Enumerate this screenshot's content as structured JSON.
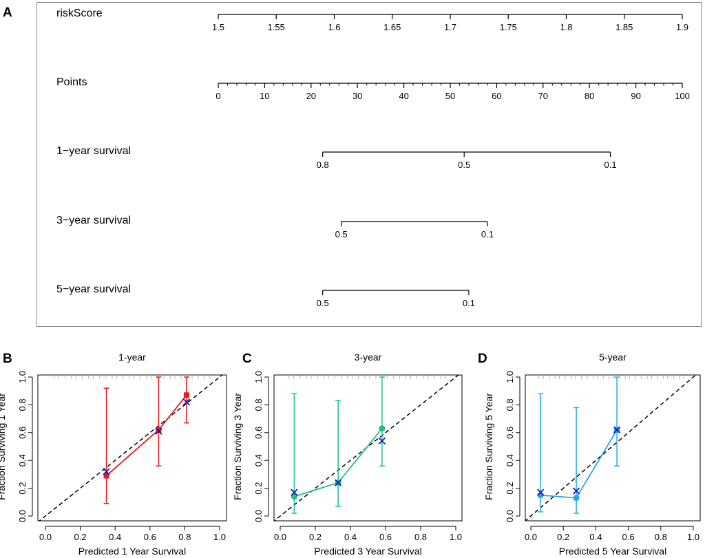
{
  "chart_data": [
    {
      "type": "nomogram",
      "panel_label": "A",
      "rows": [
        {
          "key": "riskScore",
          "label": "riskScore",
          "axis_min": 1.5,
          "axis_max": 1.9,
          "ticks": [
            "1.5",
            "1.55",
            "1.6",
            "1.65",
            "1.7",
            "1.75",
            "1.8",
            "1.85",
            "1.9"
          ],
          "tick_points": [
            0,
            12.5,
            25,
            37.5,
            50,
            62.5,
            75,
            87.5,
            100
          ],
          "minor_ticks": false
        },
        {
          "key": "points",
          "label": "Points",
          "axis_min": 0,
          "axis_max": 100,
          "ticks": [
            "0",
            "10",
            "20",
            "30",
            "40",
            "50",
            "60",
            "70",
            "80",
            "90",
            "100"
          ],
          "tick_points": [
            0,
            10,
            20,
            30,
            40,
            50,
            60,
            70,
            80,
            90,
            100
          ],
          "minor_ticks": true
        },
        {
          "key": "surv1",
          "label": "1−year survival",
          "ticks": [
            "0.8",
            "0.5",
            "0.1"
          ],
          "tick_points": [
            22.5,
            53,
            84.5
          ],
          "minor_ticks": false
        },
        {
          "key": "surv3",
          "label": "3−year survival",
          "ticks": [
            "0.5",
            "0.1"
          ],
          "tick_points": [
            26.5,
            58
          ],
          "minor_ticks": false
        },
        {
          "key": "surv5",
          "label": "5−year survival",
          "ticks": [
            "0.5",
            "0.1"
          ],
          "tick_points": [
            22.5,
            54
          ],
          "minor_ticks": false
        }
      ]
    },
    {
      "type": "line",
      "panel_label": "B",
      "title": "1-year",
      "xlabel": "Predicted  1 Year Survival",
      "ylabel": "Fraction Surviving 1 Year",
      "xlim": [
        0,
        1
      ],
      "ylim": [
        0,
        1
      ],
      "x_ticks": [
        "0.0",
        "0.2",
        "0.4",
        "0.6",
        "0.8",
        "1.0"
      ],
      "y_ticks": [
        "0.0",
        "0.2",
        "0.4",
        "0.6",
        "0.8",
        "1.0"
      ],
      "color": "#e8191c",
      "marker": "square",
      "series": [
        {
          "name": "observed",
          "x": [
            0.35,
            0.65,
            0.81
          ],
          "y": [
            0.29,
            0.62,
            0.87
          ],
          "lower": [
            0.09,
            0.36,
            0.67
          ],
          "upper": [
            0.92,
            1.0,
            1.0
          ]
        },
        {
          "name": "bias-corrected",
          "x": [
            0.35,
            0.65,
            0.81
          ],
          "y": [
            0.32,
            0.61,
            0.82
          ]
        }
      ],
      "reference_line": "diagonal"
    },
    {
      "type": "line",
      "panel_label": "C",
      "title": "3-year",
      "xlabel": "Predicted  3 Year Survival",
      "ylabel": "Fraction Surviving 3 Year",
      "xlim": [
        0,
        1
      ],
      "ylim": [
        0,
        1
      ],
      "x_ticks": [
        "0.0",
        "0.2",
        "0.4",
        "0.6",
        "0.8",
        "1.0"
      ],
      "y_ticks": [
        "0.0",
        "0.2",
        "0.4",
        "0.6",
        "0.8",
        "1.0"
      ],
      "color": "#20bf8a",
      "marker": "circle",
      "series": [
        {
          "name": "observed",
          "x": [
            0.08,
            0.33,
            0.58
          ],
          "y": [
            0.14,
            0.24,
            0.63
          ],
          "lower": [
            0.02,
            0.07,
            0.36
          ],
          "upper": [
            0.88,
            0.83,
            1.0
          ]
        },
        {
          "name": "bias-corrected",
          "x": [
            0.08,
            0.33,
            0.58
          ],
          "y": [
            0.17,
            0.24,
            0.54
          ]
        }
      ],
      "reference_line": "diagonal"
    },
    {
      "type": "line",
      "panel_label": "D",
      "title": "5-year",
      "xlabel": "Predicted  5 Year Survival",
      "ylabel": "Fraction Surviving 5 Year",
      "xlim": [
        0,
        1
      ],
      "ylim": [
        0,
        1
      ],
      "x_ticks": [
        "0.0",
        "0.2",
        "0.4",
        "0.6",
        "0.8",
        "1.0"
      ],
      "y_ticks": [
        "0.0",
        "0.2",
        "0.4",
        "0.6",
        "0.8",
        "1.0"
      ],
      "color": "#29a6e8",
      "marker": "circle",
      "series": [
        {
          "name": "observed",
          "x": [
            0.06,
            0.28,
            0.53
          ],
          "y": [
            0.15,
            0.13,
            0.62
          ],
          "lower": [
            0.03,
            0.02,
            0.36
          ],
          "upper": [
            0.88,
            0.78,
            1.0
          ]
        },
        {
          "name": "bias-corrected",
          "x": [
            0.06,
            0.28,
            0.53
          ],
          "y": [
            0.17,
            0.18,
            0.62
          ]
        }
      ],
      "reference_line": "diagonal"
    }
  ],
  "colors": {
    "marker_x": "#1616c8",
    "rug": "#b5b5b5"
  }
}
